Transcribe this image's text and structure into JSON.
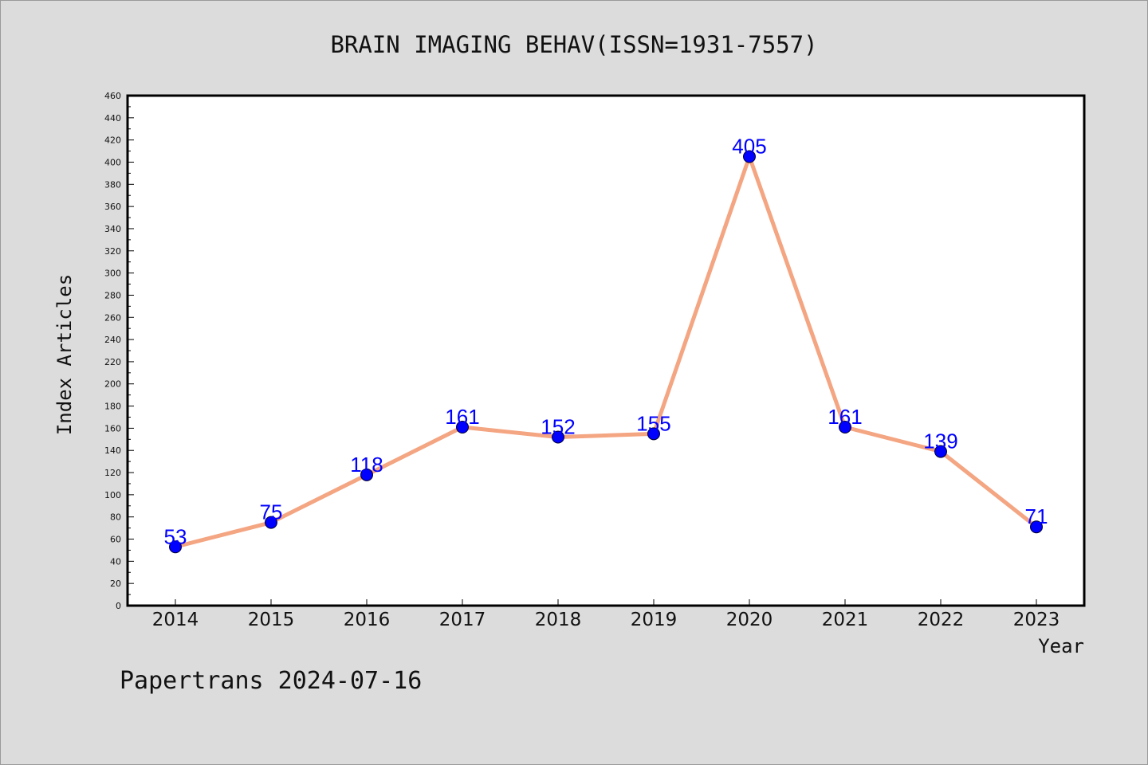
{
  "chart_data": {
    "type": "line",
    "title": "BRAIN IMAGING BEHAV(ISSN=1931-7557)",
    "xlabel": "Year",
    "ylabel": "Index Articles",
    "categories": [
      "2014",
      "2015",
      "2016",
      "2017",
      "2018",
      "2019",
      "2020",
      "2021",
      "2022",
      "2023"
    ],
    "series": [
      {
        "values": [
          53,
          75,
          118,
          161,
          152,
          155,
          405,
          161,
          139,
          71
        ]
      }
    ],
    "ylim": [
      0,
      460
    ],
    "ytick_step": 20,
    "grid": false,
    "line_color": "#f4a582",
    "marker_color": "#0000ff",
    "label_color": "#0000ff"
  },
  "footer": {
    "text": "Papertrans 2024-07-16"
  }
}
